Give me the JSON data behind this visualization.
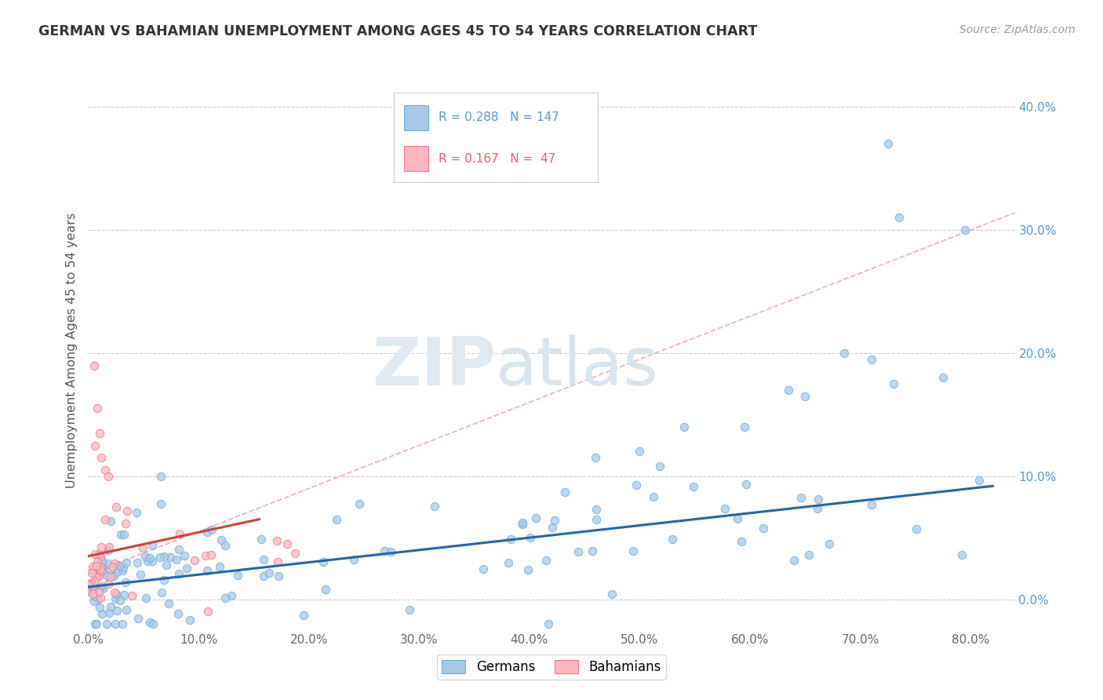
{
  "title": "GERMAN VS BAHAMIAN UNEMPLOYMENT AMONG AGES 45 TO 54 YEARS CORRELATION CHART",
  "source": "Source: ZipAtlas.com",
  "ylabel": "Unemployment Among Ages 45 to 54 years",
  "xlim": [
    0.0,
    0.84
  ],
  "ylim": [
    -0.025,
    0.43
  ],
  "xticks": [
    0.0,
    0.1,
    0.2,
    0.3,
    0.4,
    0.5,
    0.6,
    0.7,
    0.8
  ],
  "yticks": [
    0.0,
    0.1,
    0.2,
    0.3,
    0.4
  ],
  "german_color": "#a8c8e8",
  "german_edge_color": "#6baed6",
  "bahamian_color": "#ffb6c1",
  "bahamian_edge_color": "#e87a8a",
  "german_line_color": "#2166ac",
  "bahamian_line_color": "#d44040",
  "dashed_line_color": "#e8a0a8",
  "german_R": 0.288,
  "german_N": 147,
  "bahamian_R": 0.167,
  "bahamian_N": 47,
  "watermark_zip": "ZIP",
  "watermark_atlas": "atlas",
  "background_color": "#ffffff",
  "grid_color": "#cccccc",
  "ytick_color": "#5599cc",
  "xtick_color": "#666666"
}
